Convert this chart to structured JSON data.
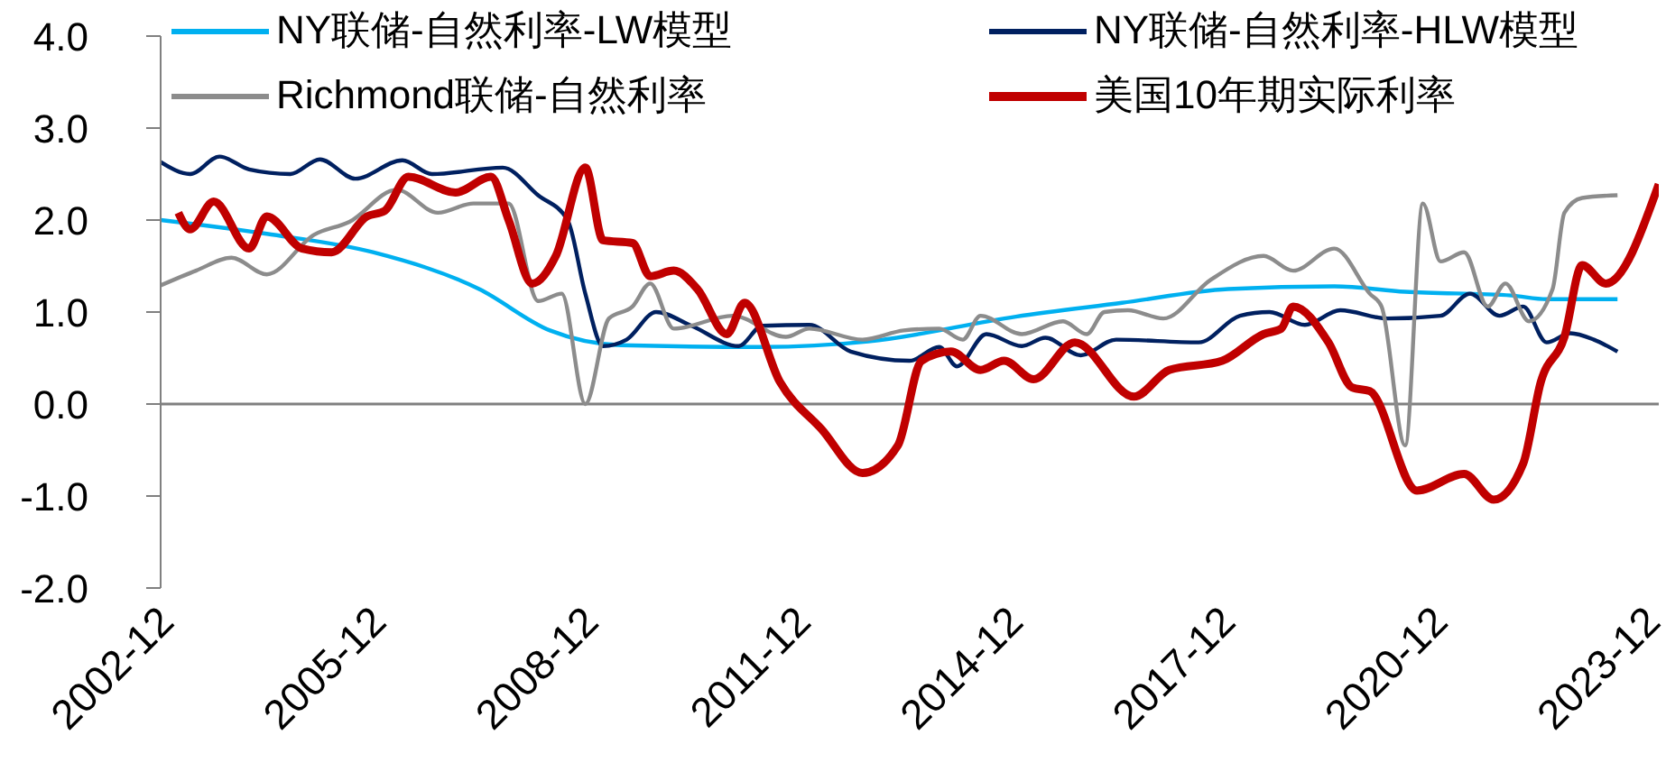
{
  "chart_data": {
    "type": "line",
    "xlim": [
      "2002-10",
      "2023-12"
    ],
    "xticks": [
      "2002-12",
      "2005-12",
      "2008-12",
      "2011-12",
      "2014-12",
      "2017-12",
      "2020-12",
      "2023-12"
    ],
    "ylim": [
      -2,
      4
    ],
    "yticks": [
      {
        "value": -2,
        "label": "-2.0"
      },
      {
        "value": -1,
        "label": "-1.0"
      },
      {
        "value": 0,
        "label": "0.0"
      },
      {
        "value": 1,
        "label": "1.0"
      },
      {
        "value": 2,
        "label": "2.0"
      },
      {
        "value": 3,
        "label": "3.0"
      },
      {
        "value": 4,
        "label": "4.0"
      }
    ],
    "grid": false,
    "legend": "top",
    "marker": "none",
    "line_style": "solid",
    "ref_lines": [
      {
        "axis": "y",
        "value": 0,
        "color": "#808080"
      }
    ],
    "series": [
      {
        "name": "NY联储-自然利率-LW模型",
        "color": "#00b0f0",
        "x": [
          "2002-10",
          "2004-04",
          "2005-10",
          "2007-04",
          "2008-04",
          "2009-04",
          "2011-04",
          "2012-10",
          "2014-11",
          "2016-05",
          "2017-11",
          "2019-05",
          "2020-05",
          "2021-11",
          "2022-05",
          "2023-05"
        ],
        "values": [
          2.0,
          1.85,
          1.65,
          1.25,
          0.8,
          0.64,
          0.62,
          0.68,
          0.95,
          1.1,
          1.25,
          1.28,
          1.22,
          1.18,
          1.14,
          1.14
        ]
      },
      {
        "name": "NY联储-自然利率-HLW模型",
        "color": "#002060",
        "x": [
          "2002-10",
          "2003-03",
          "2003-08",
          "2004-01",
          "2004-08",
          "2005-01",
          "2005-07",
          "2006-03",
          "2006-08",
          "2007-08",
          "2008-02",
          "2008-07",
          "2008-10",
          "2009-01",
          "2009-05",
          "2009-10",
          "2010-04",
          "2010-12",
          "2011-04",
          "2011-12",
          "2012-07",
          "2013-05",
          "2013-10",
          "2014-01",
          "2014-06",
          "2014-12",
          "2015-04",
          "2015-10",
          "2016-04",
          "2017-06",
          "2018-01",
          "2018-06",
          "2018-12",
          "2019-06",
          "2020-02",
          "2020-11",
          "2021-04",
          "2021-09",
          "2022-01",
          "2022-05",
          "2022-09",
          "2023-01",
          "2023-05"
        ],
        "values": [
          2.63,
          2.5,
          2.69,
          2.55,
          2.5,
          2.66,
          2.45,
          2.65,
          2.5,
          2.57,
          2.27,
          2.0,
          1.2,
          0.63,
          0.7,
          1.0,
          0.85,
          0.63,
          0.85,
          0.86,
          0.57,
          0.47,
          0.62,
          0.41,
          0.76,
          0.63,
          0.72,
          0.53,
          0.7,
          0.67,
          0.96,
          1.0,
          0.86,
          1.02,
          0.93,
          0.96,
          1.2,
          0.96,
          1.06,
          0.67,
          0.77,
          0.7,
          0.57
        ]
      },
      {
        "name": "Richmond联储-自然利率",
        "color": "#8c8c8c",
        "x": [
          "2002-10",
          "2003-04",
          "2003-10",
          "2004-04",
          "2004-12",
          "2005-06",
          "2006-02",
          "2006-09",
          "2007-03",
          "2007-09",
          "2008-02",
          "2008-06",
          "2008-10",
          "2009-02",
          "2009-06",
          "2009-09",
          "2010-01",
          "2010-11",
          "2011-08",
          "2011-12",
          "2012-09",
          "2013-04",
          "2013-10",
          "2014-02",
          "2014-05",
          "2014-12",
          "2015-07",
          "2015-11",
          "2016-02",
          "2016-06",
          "2016-12",
          "2017-08",
          "2018-05",
          "2018-10",
          "2019-05",
          "2019-11",
          "2020-01",
          "2020-05",
          "2020-08",
          "2020-11",
          "2021-03",
          "2021-07",
          "2021-10",
          "2022-02",
          "2022-06",
          "2022-08",
          "2022-11",
          "2023-05"
        ],
        "values": [
          1.29,
          1.45,
          1.59,
          1.41,
          1.84,
          1.98,
          2.33,
          2.08,
          2.18,
          2.18,
          1.12,
          1.2,
          0.0,
          0.93,
          1.06,
          1.31,
          0.82,
          0.96,
          0.73,
          0.82,
          0.7,
          0.8,
          0.82,
          0.7,
          0.96,
          0.76,
          0.9,
          0.76,
          1.0,
          1.02,
          0.93,
          1.35,
          1.61,
          1.45,
          1.69,
          1.2,
          1.06,
          -0.45,
          2.18,
          1.55,
          1.65,
          1.06,
          1.31,
          0.9,
          1.25,
          2.08,
          2.24,
          2.27
        ]
      },
      {
        "name": "美国10年期实际利率",
        "color": "#c00000",
        "x": [
          "2003-01",
          "2003-03",
          "2003-07",
          "2004-01",
          "2004-04",
          "2004-10",
          "2005-03",
          "2005-09",
          "2005-12",
          "2006-04",
          "2006-12",
          "2007-06",
          "2007-09",
          "2008-01",
          "2008-05",
          "2008-10",
          "2009-01",
          "2009-06",
          "2009-09",
          "2010-01",
          "2010-05",
          "2010-10",
          "2011-01",
          "2011-07",
          "2012-02",
          "2012-09",
          "2013-03",
          "2013-07",
          "2013-12",
          "2014-05",
          "2014-09",
          "2015-02",
          "2015-09",
          "2016-07",
          "2017-01",
          "2017-10",
          "2018-05",
          "2018-08",
          "2018-10",
          "2019-04",
          "2019-08",
          "2019-11",
          "2020-07",
          "2021-03",
          "2021-08",
          "2022-01",
          "2022-04",
          "2022-08",
          "2022-11",
          "2023-03",
          "2023-12"
        ],
        "values": [
          2.08,
          1.9,
          2.2,
          1.69,
          2.04,
          1.69,
          1.65,
          2.04,
          2.1,
          2.47,
          2.3,
          2.47,
          2.0,
          1.31,
          1.61,
          2.57,
          1.78,
          1.75,
          1.39,
          1.45,
          1.25,
          0.76,
          1.1,
          0.24,
          -0.27,
          -0.75,
          -0.45,
          0.47,
          0.57,
          0.37,
          0.47,
          0.27,
          0.67,
          0.08,
          0.37,
          0.47,
          0.76,
          0.82,
          1.06,
          0.67,
          0.18,
          0.14,
          -0.94,
          -0.76,
          -1.04,
          -0.65,
          0.24,
          0.73,
          1.51,
          1.31,
          2.39
        ]
      }
    ]
  }
}
